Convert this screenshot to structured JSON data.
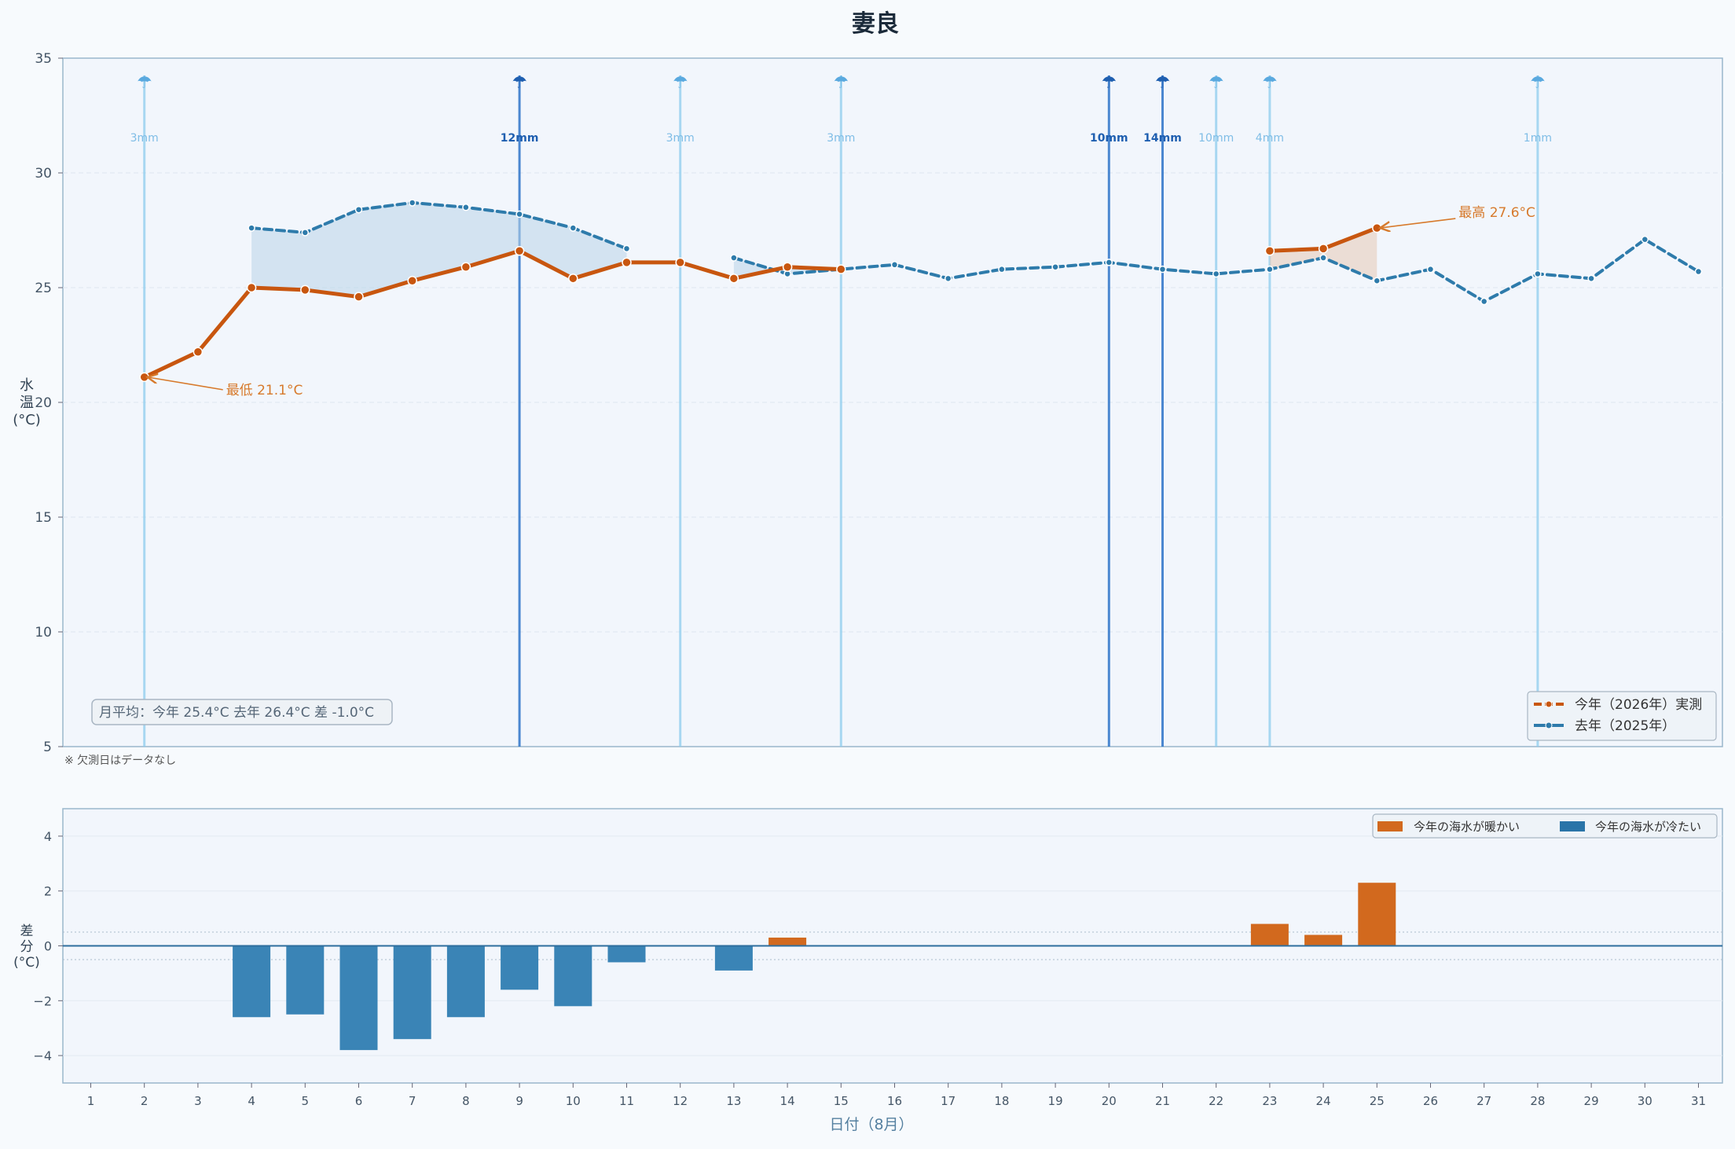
{
  "title": "妻良",
  "note": "※ 欠測日はデータなし",
  "monthly_avg_label": "月平均：今年 25.4°C  去年 26.4°C  差 -1.0°C",
  "chart_data": [
    {
      "type": "line",
      "title": "妻良",
      "ylabel": "水温(°C)",
      "ylabel_chars": [
        "水",
        "温",
        "(°C)"
      ],
      "ylim": [
        5,
        35
      ],
      "yticks": [
        5,
        10,
        15,
        20,
        25,
        30,
        35
      ],
      "x": [
        1,
        2,
        3,
        4,
        5,
        6,
        7,
        8,
        9,
        10,
        11,
        12,
        13,
        14,
        15,
        16,
        17,
        18,
        19,
        20,
        21,
        22,
        23,
        24,
        25,
        26,
        27,
        28,
        29,
        30,
        31
      ],
      "grid": true,
      "legend_position": "bottom-right",
      "series": [
        {
          "name": "今年（2026年）実測",
          "color": "#c8560f",
          "values": [
            null,
            21.1,
            22.2,
            25.0,
            24.9,
            24.6,
            25.3,
            25.9,
            26.6,
            25.4,
            26.1,
            26.1,
            25.4,
            25.9,
            25.8,
            null,
            null,
            null,
            null,
            null,
            null,
            null,
            26.6,
            26.7,
            27.6,
            null,
            null,
            null,
            null,
            null,
            null
          ]
        },
        {
          "name": "去年（2025年）",
          "color": "#2e7bab",
          "values": [
            null,
            null,
            null,
            27.6,
            27.4,
            28.4,
            28.7,
            28.5,
            28.2,
            27.6,
            26.7,
            null,
            26.3,
            25.6,
            25.8,
            26.0,
            25.4,
            25.8,
            25.9,
            26.1,
            25.8,
            25.6,
            25.8,
            26.3,
            25.3,
            25.8,
            24.4,
            25.6,
            25.4,
            27.1,
            25.7
          ]
        }
      ],
      "rain": [
        {
          "day": 2,
          "label": "3mm",
          "heavy": false
        },
        {
          "day": 9,
          "label": "12mm",
          "heavy": true
        },
        {
          "day": 12,
          "label": "3mm",
          "heavy": false
        },
        {
          "day": 15,
          "label": "3mm",
          "heavy": false
        },
        {
          "day": 20,
          "label": "10mm",
          "heavy": true
        },
        {
          "day": 21,
          "label": "14mm",
          "heavy": true
        },
        {
          "day": 22,
          "label": "10mm",
          "heavy": false
        },
        {
          "day": 23,
          "label": "4mm",
          "heavy": false
        },
        {
          "day": 28,
          "label": "1mm",
          "heavy": false
        }
      ],
      "annotations": [
        {
          "day": 2,
          "value": 21.1,
          "text": "最低 21.1°C"
        },
        {
          "day": 25,
          "value": 27.6,
          "text": "最高 27.6°C"
        }
      ]
    },
    {
      "type": "bar",
      "ylabel": "差分(°C)",
      "ylabel_chars": [
        "差",
        "分",
        "(°C)"
      ],
      "xlabel": "日付（8月）",
      "ylim": [
        -5,
        5
      ],
      "yticks": [
        -4,
        -2,
        0,
        2,
        4
      ],
      "ytick_labels": [
        "−4",
        "−2",
        "0",
        "2",
        "4"
      ],
      "categories": [
        "1",
        "2",
        "3",
        "4",
        "5",
        "6",
        "7",
        "8",
        "9",
        "10",
        "11",
        "12",
        "13",
        "14",
        "15",
        "16",
        "17",
        "18",
        "19",
        "20",
        "21",
        "22",
        "23",
        "24",
        "25",
        "26",
        "27",
        "28",
        "29",
        "30",
        "31"
      ],
      "values": [
        null,
        null,
        null,
        -2.6,
        -2.5,
        -3.8,
        -3.4,
        -2.6,
        -1.6,
        -2.2,
        -0.6,
        null,
        -0.9,
        0.3,
        null,
        null,
        null,
        null,
        null,
        null,
        null,
        null,
        0.8,
        0.4,
        2.3,
        null,
        null,
        null,
        null,
        null,
        null
      ],
      "legend_position": "top-right",
      "legend": [
        {
          "name": "今年の海水が暖かい",
          "color": "#d2691e"
        },
        {
          "name": "今年の海水が冷たい",
          "color": "#2a74a8"
        }
      ]
    }
  ],
  "colors": {
    "warm": "#c8560f",
    "warm_bar": "#d2691e",
    "cold": "#2e7bab",
    "cold_bar": "#3a84b6",
    "rain_light": "#8fcdee",
    "rain_heavy": "#2e74c9",
    "plot_bg": "#f2f6fc",
    "frame": "#9ab7cc"
  }
}
